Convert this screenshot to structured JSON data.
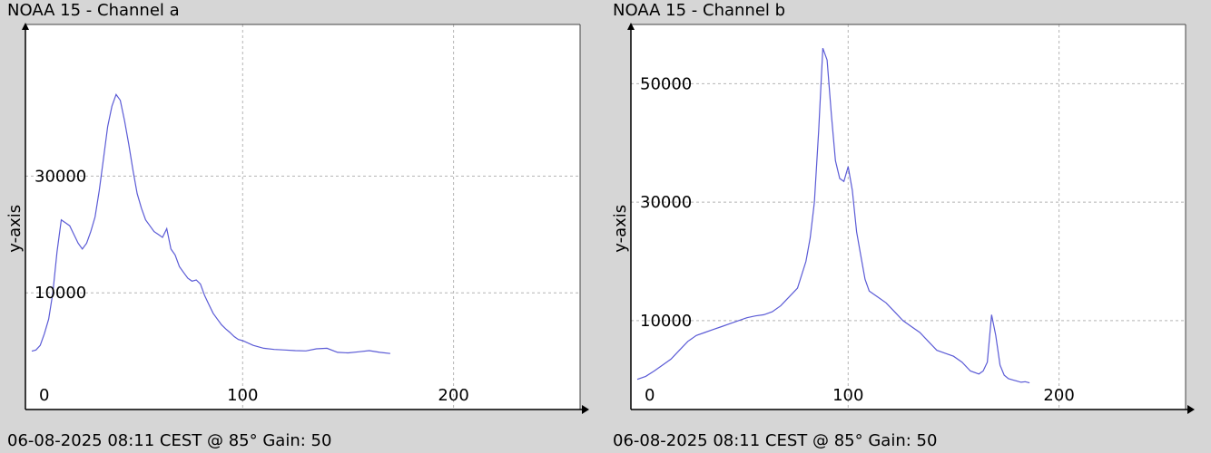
{
  "colors": {
    "background": "#d6d6d6",
    "plot_bg": "#ffffff",
    "line": "#5b5bd6",
    "grid": "#b4b4b4",
    "axis": "#000000"
  },
  "chart_data": [
    {
      "type": "line",
      "title": "NOAA 15 - Channel a",
      "footer": "06-08-2025 08:11 CEST @ 85° Gain: 50",
      "ylabel": "y-axis",
      "xlabel": "",
      "xlim": [
        -3,
        260
      ],
      "ylim": [
        -10000,
        56000
      ],
      "xticks": [
        0,
        100,
        200
      ],
      "yticks": [
        10000,
        30000
      ],
      "grid": true,
      "series": [
        {
          "x": [
            0,
            2,
            4,
            6,
            8,
            10,
            12,
            14,
            16,
            18,
            20,
            22,
            24,
            26,
            28,
            30,
            32,
            34,
            36,
            38,
            40,
            42,
            44,
            46,
            48,
            50,
            52,
            54,
            56,
            58,
            60,
            62,
            64,
            66,
            68,
            70,
            72,
            74,
            76,
            78,
            80,
            82,
            84,
            86,
            88,
            90,
            92,
            94,
            96,
            98,
            100,
            105,
            110,
            115,
            120,
            125,
            130,
            135,
            140,
            145,
            150,
            155,
            160,
            165,
            170
          ],
          "y": [
            0,
            200,
            1000,
            3000,
            5500,
            10000,
            17000,
            22500,
            22000,
            21500,
            20000,
            18500,
            17500,
            18500,
            20500,
            23000,
            27500,
            33000,
            38500,
            42000,
            44000,
            43000,
            39500,
            35500,
            31000,
            27000,
            24500,
            22500,
            21500,
            20500,
            20000,
            19500,
            21000,
            17500,
            16500,
            14500,
            13500,
            12500,
            12000,
            12200,
            11500,
            9500,
            8000,
            6500,
            5500,
            4500,
            3800,
            3200,
            2500,
            2000,
            1800,
            1000,
            500,
            300,
            200,
            100,
            50,
            400,
            500,
            -200,
            -300,
            -100,
            100,
            -200,
            -400
          ]
        }
      ]
    },
    {
      "type": "line",
      "title": "NOAA 15 - Channel b",
      "footer": "06-08-2025 08:11 CEST @ 85° Gain: 50",
      "ylabel": "y-axis",
      "xlabel": "",
      "xlim": [
        -3,
        260
      ],
      "ylim": [
        -5000,
        60000
      ],
      "xticks": [
        0,
        100,
        200
      ],
      "yticks": [
        10000,
        30000,
        50000
      ],
      "grid": true,
      "series": [
        {
          "x": [
            0,
            4,
            8,
            12,
            16,
            20,
            24,
            28,
            32,
            36,
            40,
            44,
            48,
            52,
            56,
            60,
            64,
            68,
            72,
            76,
            80,
            82,
            84,
            86,
            88,
            90,
            92,
            94,
            96,
            98,
            100,
            102,
            104,
            106,
            108,
            110,
            114,
            118,
            122,
            126,
            130,
            134,
            138,
            142,
            146,
            150,
            154,
            158,
            162,
            164,
            166,
            168,
            170,
            172,
            174,
            176,
            178,
            180,
            182,
            184,
            186
          ],
          "y": [
            100,
            600,
            1500,
            2500,
            3500,
            5000,
            6500,
            7500,
            8000,
            8500,
            9000,
            9500,
            10000,
            10500,
            10800,
            11000,
            11500,
            12500,
            14000,
            15500,
            20000,
            24000,
            30000,
            42000,
            56000,
            54000,
            45000,
            37000,
            34000,
            33500,
            36000,
            32000,
            25000,
            21000,
            17000,
            15000,
            14000,
            13000,
            11500,
            10000,
            9000,
            8000,
            6500,
            5000,
            4500,
            4000,
            3000,
            1500,
            1000,
            1500,
            3000,
            11000,
            7500,
            2500,
            800,
            200,
            0,
            -200,
            -400,
            -300,
            -500
          ]
        }
      ]
    }
  ]
}
